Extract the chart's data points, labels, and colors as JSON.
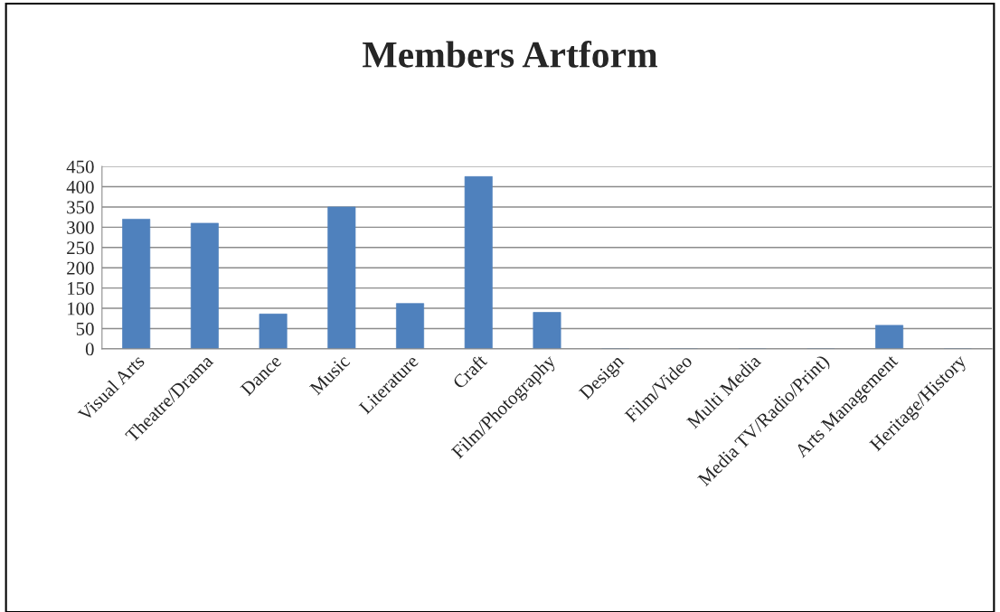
{
  "chart_data": {
    "type": "bar",
    "title": "Members Artform",
    "categories": [
      "Visual Arts",
      "Theatre/Drama",
      "Dance",
      "Music",
      "Literature",
      "Craft",
      "Film/Photography",
      "Design",
      "Film/Video",
      "Multi Media",
      "Media TV/Radio/Print)",
      "Arts Management",
      "Heritage/History"
    ],
    "values": [
      320,
      310,
      86,
      350,
      112,
      425,
      90,
      0,
      0,
      0,
      0,
      58,
      0
    ],
    "color": "#4f81bd",
    "ylim": [
      0,
      450
    ],
    "yticks": [
      0,
      50,
      100,
      150,
      200,
      250,
      300,
      350,
      400,
      450
    ],
    "grid": "y",
    "legend": false
  }
}
